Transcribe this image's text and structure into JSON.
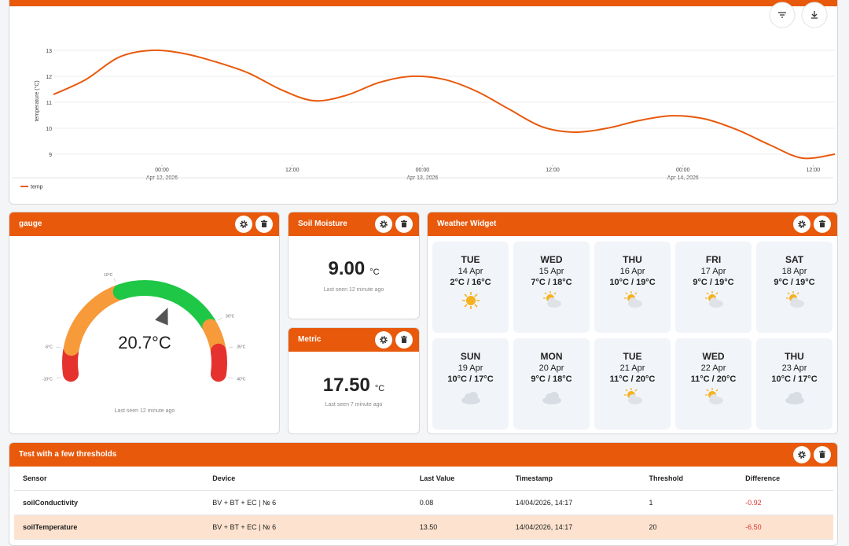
{
  "chart_data": {
    "type": "line",
    "y_label": "temperature (°C)",
    "x": [
      "2026-04-11 14:00",
      "2026-04-11 17:00",
      "2026-04-11 20:00",
      "2026-04-11 23:00",
      "2026-04-12 02:00",
      "2026-04-12 05:00",
      "2026-04-12 08:00",
      "2026-04-12 11:00",
      "2026-04-12 14:00",
      "2026-04-12 17:00",
      "2026-04-12 20:00",
      "2026-04-12 23:00",
      "2026-04-13 02:00",
      "2026-04-13 05:00",
      "2026-04-13 08:00",
      "2026-04-13 11:00",
      "2026-04-13 14:00",
      "2026-04-13 17:00",
      "2026-04-13 20:00",
      "2026-04-13 23:00",
      "2026-04-14 02:00",
      "2026-04-14 05:00",
      "2026-04-14 08:00",
      "2026-04-14 11:00",
      "2026-04-14 14:00"
    ],
    "series": [
      {
        "name": "temp",
        "color": "#e8590c",
        "values": [
          11.3,
          11.88,
          12.73,
          13.0,
          12.88,
          12.55,
          12.12,
          11.48,
          11.06,
          11.27,
          11.76,
          12.0,
          11.88,
          11.42,
          10.73,
          10.06,
          9.85,
          10.0,
          10.3,
          10.48,
          10.36,
          9.94,
          9.36,
          8.85,
          9.0
        ]
      }
    ],
    "xlim": [
      "2026-04-11 14:00",
      "2026-04-14 14:00"
    ],
    "xticks": [
      {
        "value": "2026-04-12 00:00",
        "label": [
          "00:00",
          "Apr 12, 2026"
        ]
      },
      {
        "value": "2026-04-12 12:00",
        "label": "12:00"
      },
      {
        "value": "2026-04-13 00:00",
        "label": [
          "00:00",
          "Apr 13, 2026"
        ]
      },
      {
        "value": "2026-04-13 12:00",
        "label": "12:00"
      },
      {
        "value": "2026-04-14 00:00",
        "label": [
          "00:00",
          "Apr 14, 2026"
        ]
      },
      {
        "value": "2026-04-14 12:00",
        "label": "12:00"
      }
    ],
    "ylim": [
      8.6,
      13.5
    ],
    "yticks": [
      9,
      10,
      11,
      12,
      13
    ],
    "grid": true,
    "legend": "bottom-left"
  },
  "gauge": {
    "title": "gauge",
    "value": 20.7,
    "value_label": "20.7°C",
    "ticks": [
      {
        "value": -10,
        "label": "-10°C"
      },
      {
        "value": -5,
        "label": "-5°C"
      },
      {
        "value": 10,
        "label": "10°C"
      },
      {
        "value": 30,
        "label": "30°C"
      },
      {
        "value": 35,
        "label": "35°C"
      },
      {
        "value": 40,
        "label": "40°C"
      }
    ],
    "bands": [
      {
        "from": -10,
        "to": -5,
        "color": "#e5322f"
      },
      {
        "from": -5,
        "to": 10,
        "color": "#f79a3a"
      },
      {
        "from": 10,
        "to": 30,
        "color": "#1ec746"
      },
      {
        "from": 30,
        "to": 35,
        "color": "#f79a3a"
      },
      {
        "from": 35,
        "to": 40,
        "color": "#e5322f"
      }
    ],
    "footer": "Last seen 12 minute ago"
  },
  "soil_moisture": {
    "title": "Soil Moisture",
    "value": "9.00",
    "unit": "°C",
    "footer": "Last seen 12 minute ago"
  },
  "metric": {
    "title": "Metric",
    "value": "17.50",
    "unit": "°C",
    "footer": "Last seen 7 minute ago"
  },
  "weather": {
    "title": "Weather Widget",
    "days": [
      {
        "day": "TUE",
        "date": "14 Apr",
        "temps": "2°C / 16°C",
        "icon": "sun"
      },
      {
        "day": "WED",
        "date": "15 Apr",
        "temps": "7°C / 18°C",
        "icon": "partly"
      },
      {
        "day": "THU",
        "date": "16 Apr",
        "temps": "10°C / 19°C",
        "icon": "partly"
      },
      {
        "day": "FRI",
        "date": "17 Apr",
        "temps": "9°C / 19°C",
        "icon": "partly"
      },
      {
        "day": "SAT",
        "date": "18 Apr",
        "temps": "9°C / 19°C",
        "icon": "partly"
      },
      {
        "day": "SUN",
        "date": "19 Apr",
        "temps": "10°C / 17°C",
        "icon": "cloud"
      },
      {
        "day": "MON",
        "date": "20 Apr",
        "temps": "9°C / 18°C",
        "icon": "cloud"
      },
      {
        "day": "TUE",
        "date": "21 Apr",
        "temps": "11°C / 20°C",
        "icon": "partly"
      },
      {
        "day": "WED",
        "date": "22 Apr",
        "temps": "11°C / 20°C",
        "icon": "partly"
      },
      {
        "day": "THU",
        "date": "23 Apr",
        "temps": "10°C / 17°C",
        "icon": "cloud"
      }
    ]
  },
  "table": {
    "title": "Test with a few thresholds",
    "columns": [
      "Sensor",
      "Device",
      "Last Value",
      "Timestamp",
      "Threshold",
      "Difference"
    ],
    "rows": [
      [
        "soilConductivity",
        "BV + BT + EC | № 6",
        "0.08",
        "14/04/2026, 14:17",
        "1",
        "-0.92"
      ],
      [
        "soilTemperature",
        "BV + BT + EC | № 6",
        "13.50",
        "14/04/2026, 14:17",
        "20",
        "-6.50"
      ]
    ],
    "highlight_row": 1
  }
}
